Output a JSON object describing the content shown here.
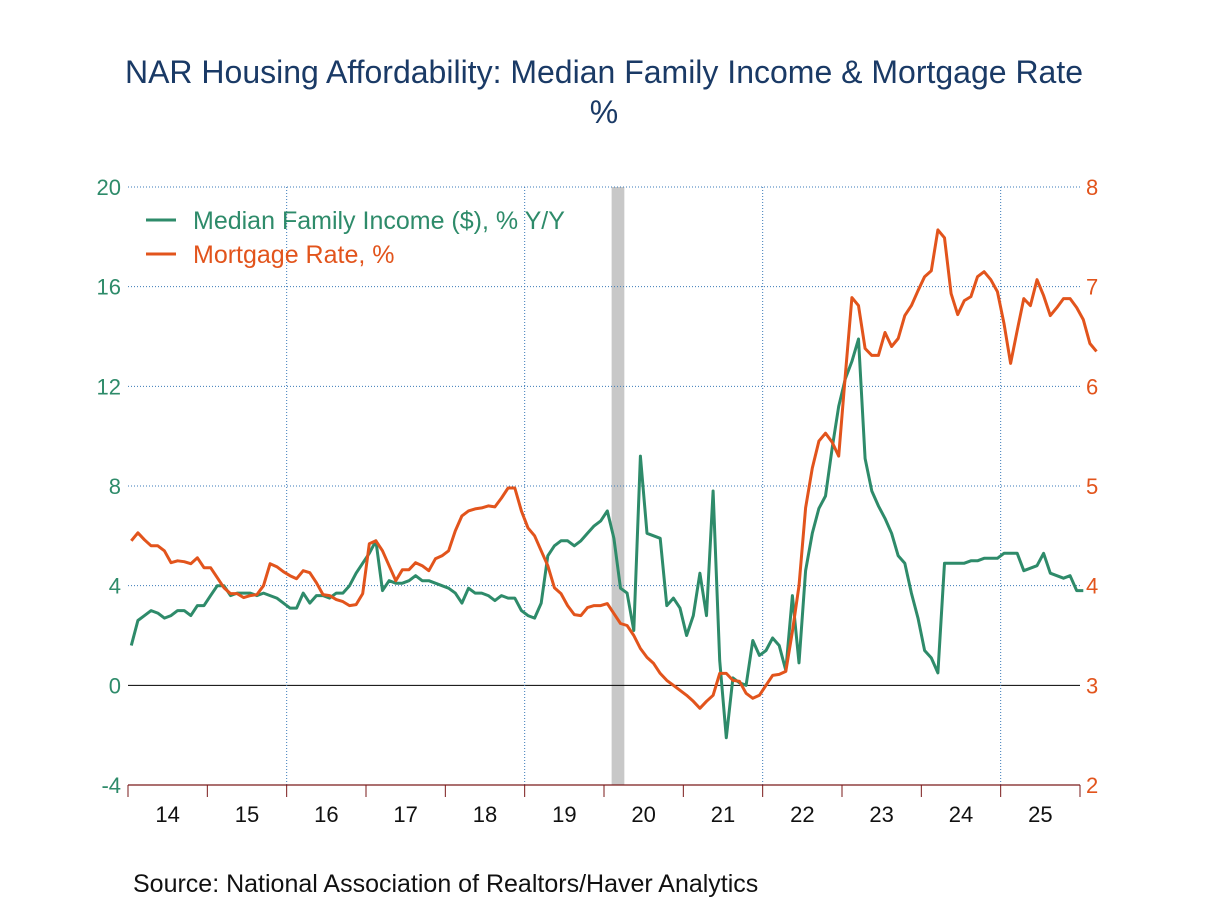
{
  "chart_data": {
    "type": "line",
    "title": "NAR Housing Affordability: Median Family Income & Mortgage Rate",
    "subtitle": "%",
    "source": "Source:  National Association of Realtors/Haver Analytics",
    "x_start": "2014-01",
    "frequency": "monthly",
    "x_tick_labels": [
      "14",
      "15",
      "16",
      "17",
      "18",
      "19",
      "20",
      "21",
      "22",
      "23",
      "24",
      "25"
    ],
    "left_axis": {
      "ylim": [
        -4,
        20
      ],
      "ticks": [
        "-4",
        "0",
        "4",
        "8",
        "12",
        "16",
        "20"
      ],
      "color": "#2e8b6a"
    },
    "right_axis": {
      "ylim": [
        2,
        8
      ],
      "ticks": [
        "2",
        "3",
        "4",
        "5",
        "6",
        "7",
        "8"
      ],
      "color": "#e2541c"
    },
    "grid": true,
    "legend_position": "top-left",
    "recession_shading": [
      {
        "start": "2020-02",
        "end": "2020-04",
        "color": "#c8c8c8"
      }
    ],
    "series": [
      {
        "name": "Median Family Income ($), % Y/Y",
        "axis": "left",
        "color": "#2e8b6a",
        "values": [
          1.6,
          2.6,
          2.8,
          3.0,
          2.9,
          2.7,
          2.8,
          3.0,
          3.0,
          2.8,
          3.2,
          3.2,
          3.6,
          4.0,
          4.0,
          3.6,
          3.7,
          3.7,
          3.7,
          3.6,
          3.7,
          3.6,
          3.5,
          3.3,
          3.1,
          3.1,
          3.7,
          3.3,
          3.6,
          3.6,
          3.5,
          3.7,
          3.7,
          4.0,
          4.5,
          4.9,
          5.3,
          5.8,
          3.8,
          4.2,
          4.1,
          4.1,
          4.2,
          4.4,
          4.2,
          4.2,
          4.1,
          4.0,
          3.9,
          3.7,
          3.3,
          3.9,
          3.7,
          3.7,
          3.6,
          3.4,
          3.6,
          3.5,
          3.5,
          3.0,
          2.8,
          2.7,
          3.3,
          5.2,
          5.6,
          5.8,
          5.8,
          5.6,
          5.8,
          6.1,
          6.4,
          6.6,
          7.0,
          5.9,
          3.9,
          3.7,
          2.2,
          9.2,
          6.1,
          6.0,
          5.9,
          3.2,
          3.5,
          3.1,
          2.0,
          2.8,
          4.5,
          2.8,
          7.8,
          1.0,
          -2.1,
          0.3,
          0.1,
          0.0,
          1.8,
          1.2,
          1.4,
          1.9,
          1.6,
          0.6,
          3.6,
          0.9,
          4.6,
          6.1,
          7.1,
          7.6,
          9.5,
          11.2,
          12.3,
          13.0,
          13.9,
          9.1,
          7.8,
          7.2,
          6.7,
          6.1,
          5.2,
          4.9,
          3.7,
          2.7,
          1.4,
          1.1,
          0.5,
          4.9,
          4.9,
          4.9,
          4.9,
          5.0,
          5.0,
          5.1,
          5.1,
          5.1,
          5.3,
          5.3,
          5.3,
          4.6,
          4.7,
          4.8,
          5.3,
          4.5,
          4.4,
          4.3,
          4.4,
          3.8,
          3.8
        ]
      },
      {
        "name": "Mortgage Rate, %",
        "axis": "right",
        "color": "#e2541c",
        "values": [
          4.45,
          4.53,
          4.46,
          4.4,
          4.4,
          4.35,
          4.23,
          4.25,
          4.24,
          4.22,
          4.28,
          4.18,
          4.18,
          4.08,
          3.98,
          3.92,
          3.92,
          3.88,
          3.9,
          3.91,
          4.0,
          4.22,
          4.19,
          4.14,
          4.1,
          4.07,
          4.15,
          4.13,
          4.03,
          3.91,
          3.9,
          3.86,
          3.84,
          3.8,
          3.81,
          3.92,
          4.42,
          4.45,
          4.35,
          4.2,
          4.05,
          4.16,
          4.16,
          4.23,
          4.2,
          4.15,
          4.27,
          4.3,
          4.35,
          4.55,
          4.7,
          4.75,
          4.77,
          4.78,
          4.8,
          4.79,
          4.88,
          4.98,
          4.98,
          4.75,
          4.58,
          4.5,
          4.35,
          4.2,
          3.98,
          3.92,
          3.8,
          3.71,
          3.7,
          3.78,
          3.8,
          3.8,
          3.82,
          3.72,
          3.62,
          3.6,
          3.5,
          3.37,
          3.28,
          3.22,
          3.12,
          3.05,
          3.0,
          2.95,
          2.9,
          2.84,
          2.77,
          2.84,
          2.9,
          3.12,
          3.12,
          3.05,
          3.04,
          2.92,
          2.87,
          2.9,
          3.0,
          3.1,
          3.11,
          3.14,
          3.54,
          4.0,
          4.78,
          5.18,
          5.45,
          5.53,
          5.44,
          5.3,
          6.11,
          6.89,
          6.81,
          6.38,
          6.31,
          6.31,
          6.54,
          6.4,
          6.48,
          6.71,
          6.81,
          6.96,
          7.1,
          7.16,
          7.57,
          7.49,
          6.93,
          6.72,
          6.86,
          6.9,
          7.1,
          7.15,
          7.07,
          6.95,
          6.63,
          6.23,
          6.56,
          6.88,
          6.81,
          7.07,
          6.91,
          6.71,
          6.79,
          6.88,
          6.88,
          6.79,
          6.67,
          6.43,
          6.35
        ]
      }
    ]
  },
  "title_line1": "NAR Housing Affordability: Median Family Income & Mortgage Rate",
  "title_line2": "%",
  "legend": {
    "items": [
      {
        "label": "Median Family Income ($), % Y/Y",
        "color": "#2e8b6a"
      },
      {
        "label": "Mortgage Rate, %",
        "color": "#e2541c"
      }
    ]
  },
  "source": "Source:  National Association of Realtors/Haver Analytics"
}
